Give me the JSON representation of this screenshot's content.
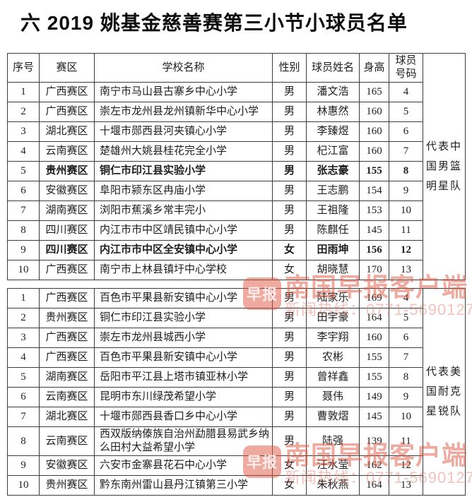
{
  "page": {
    "title": "六 2019 姚基金慈善赛第三小节小球员名单"
  },
  "columns": [
    "序号",
    "赛区",
    "学校名称",
    "性别",
    "球员姓名",
    "身高",
    "球员\n号码"
  ],
  "tables": [
    {
      "has_header": true,
      "team_label": "代表中\n国男篮\n明星队",
      "rows": [
        {
          "no": "1",
          "region": "广西赛区",
          "school": "南宁市马山县古寨乡中心小学",
          "gender": "男",
          "name": "潘文浩",
          "height": "165",
          "number": "4",
          "bold": false
        },
        {
          "no": "2",
          "region": "广西赛区",
          "school": "崇左市龙州县龙州镇新华中心小学",
          "gender": "男",
          "name": "林惠然",
          "height": "160",
          "number": "5",
          "bold": false
        },
        {
          "no": "3",
          "region": "湖北赛区",
          "school": "十堰市郧西县河夹镇心小学",
          "gender": "男",
          "name": "李臻煜",
          "height": "160",
          "number": "6",
          "bold": false
        },
        {
          "no": "4",
          "region": "云南赛区",
          "school": "楚雄州大姚县桂花完全小学",
          "gender": "男",
          "name": "杞江富",
          "height": "160",
          "number": "7",
          "bold": false
        },
        {
          "no": "5",
          "region": "贵州赛区",
          "school": "铜仁市印江县实验小学",
          "gender": "男",
          "name": "张志豪",
          "height": "155",
          "number": "8",
          "bold": true
        },
        {
          "no": "6",
          "region": "安徽赛区",
          "school": "阜阳市颍东区冉庙小学",
          "gender": "男",
          "name": "王志鹏",
          "height": "154",
          "number": "9",
          "bold": false
        },
        {
          "no": "7",
          "region": "湖南赛区",
          "school": "浏阳市蕉溪乡常丰完小",
          "gender": "男",
          "name": "王祖隆",
          "height": "153",
          "number": "10",
          "bold": false
        },
        {
          "no": "8",
          "region": "四川赛区",
          "school": "内江市市中区靖民镇中心小学",
          "gender": "男",
          "name": "陈麒任",
          "height": "145",
          "number": "11",
          "bold": false
        },
        {
          "no": "9",
          "region": "四川赛区",
          "school": "内江市市中区全安镇中心小学",
          "gender": "女",
          "name": "田雨坤",
          "height": "156",
          "number": "12",
          "bold": true
        },
        {
          "no": "10",
          "region": "广西赛区",
          "school": "南宁市上林县镇圩中心学校",
          "gender": "女",
          "name": "胡晓慧",
          "height": "170",
          "number": "13",
          "bold": false
        }
      ]
    },
    {
      "has_header": false,
      "team_label": "代表美\n国耐克\n星锐队",
      "rows": [
        {
          "no": "1",
          "region": "广西赛区",
          "school": "百色市平果县新安镇中心小学",
          "gender": "男",
          "name": "陆家乐",
          "height": "169",
          "number": "4",
          "bold": false
        },
        {
          "no": "2",
          "region": "贵州赛区",
          "school": "铜仁市印江县实验小学",
          "gender": "男",
          "name": "田宇豪",
          "height": "164",
          "number": "5",
          "bold": false
        },
        {
          "no": "3",
          "region": "广西赛区",
          "school": "崇左市龙州县城西小学",
          "gender": "男",
          "name": "李宇翔",
          "height": "160",
          "number": "6",
          "bold": false
        },
        {
          "no": "4",
          "region": "广西赛区",
          "school": "百色市平果县新安镇中心小学",
          "gender": "男",
          "name": "农彬",
          "height": "155",
          "number": "7",
          "bold": false
        },
        {
          "no": "5",
          "region": "湖南赛区",
          "school": "岳阳市平江县上塔市镇亚林小学",
          "gender": "男",
          "name": "曾祥鑫",
          "height": "155",
          "number": "8",
          "bold": false
        },
        {
          "no": "6",
          "region": "云南赛区",
          "school": "昆明市东川绿茂希望小学",
          "gender": "男",
          "name": "聂伟",
          "height": "149",
          "number": "9",
          "bold": false
        },
        {
          "no": "7",
          "region": "湖北赛区",
          "school": "十堰市郧西县香口乡中心小学",
          "gender": "男",
          "name": "曹敦熠",
          "height": "145",
          "number": "10",
          "bold": false
        },
        {
          "no": "8",
          "region": "云南赛区",
          "school": "西双版纳傣族自治州勐腊县易武乡纳么田村大益希望小学",
          "gender": "男",
          "name": "陆强",
          "height": "139",
          "number": "11",
          "bold": false
        },
        {
          "no": "9",
          "region": "安徽赛区",
          "school": "六安市金寨县花石中心小学",
          "gender": "女",
          "name": "汪水莹",
          "height": "162",
          "number": "12",
          "bold": false
        },
        {
          "no": "10",
          "region": "贵州赛区",
          "school": "黔东南州雷山县丹江镇第三小学",
          "gender": "女",
          "name": "朱秋燕",
          "height": "164",
          "number": "13",
          "bold": false
        }
      ]
    }
  ],
  "watermark": {
    "logo_text": "早报",
    "brand": "南国早报客户端",
    "hotline": "新闻热线：0771-5690127",
    "accent_color": "#de5540"
  }
}
